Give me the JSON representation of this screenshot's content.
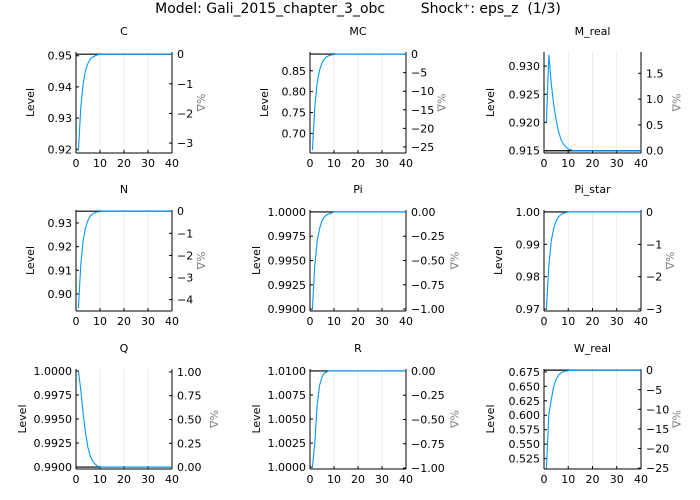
{
  "figure_title": "Model: Gali_2015_chapter_3_obc        Shock⁺: eps_z  (1/3)",
  "colors": {
    "line": "#009af9",
    "steady_state": "#000000",
    "grid": "#e6e6e6",
    "pct_label": "#808080"
  },
  "chart_data": [
    {
      "type": "line",
      "title": "C",
      "ylabel": "Level",
      "ylabel_right": "%Δ",
      "xlim": [
        0,
        40
      ],
      "xticks": [
        0,
        10,
        20,
        30,
        40
      ],
      "ylim": [
        0.9188,
        0.9512
      ],
      "yticks": [
        0.92,
        0.93,
        0.94,
        0.95
      ],
      "ytick_labels": [
        "0.92",
        "0.93",
        "0.94",
        "0.95"
      ],
      "steady_state": 0.9505,
      "right_ticks": [
        0,
        -1,
        -2,
        -3
      ],
      "right_tick_labels": [
        "0",
        "−1",
        "−2",
        "−3"
      ],
      "values": [
        0.9195,
        0.9335,
        0.9412,
        0.9454,
        0.9476,
        0.949,
        0.9496,
        0.95,
        0.9503,
        0.9504,
        0.9505,
        0.9505,
        0.9505,
        0.9505,
        0.9505,
        0.9505,
        0.9505,
        0.9505,
        0.9505,
        0.9505,
        0.9505,
        0.9505,
        0.9505,
        0.9505,
        0.9505,
        0.9505,
        0.9505,
        0.9505,
        0.9505,
        0.9505,
        0.9505,
        0.9505,
        0.9505,
        0.9505,
        0.9505,
        0.9505,
        0.9505,
        0.9505,
        0.9505,
        0.9505
      ]
    },
    {
      "type": "line",
      "title": "MC",
      "ylabel": "Level",
      "ylabel_right": "%Δ",
      "xlim": [
        0,
        40
      ],
      "xticks": [
        0,
        10,
        20,
        30,
        40
      ],
      "ylim": [
        0.653,
        0.895
      ],
      "yticks": [
        0.7,
        0.75,
        0.8,
        0.85
      ],
      "ytick_labels": [
        "0.70",
        "0.75",
        "0.80",
        "0.85"
      ],
      "steady_state": 0.89,
      "right_ticks": [
        0,
        -5,
        -10,
        -15,
        -20,
        -25
      ],
      "right_tick_labels": [
        "0",
        "−5",
        "−10",
        "−15",
        "−20",
        "−25"
      ],
      "values": [
        0.66,
        0.7635,
        0.821,
        0.852,
        0.869,
        0.8785,
        0.8836,
        0.8865,
        0.8882,
        0.8889,
        0.89,
        0.89,
        0.89,
        0.89,
        0.89,
        0.89,
        0.89,
        0.89,
        0.89,
        0.89,
        0.89,
        0.89,
        0.89,
        0.89,
        0.89,
        0.89,
        0.89,
        0.89,
        0.89,
        0.89,
        0.89,
        0.89,
        0.89,
        0.89,
        0.89,
        0.89,
        0.89,
        0.89,
        0.89,
        0.89
      ]
    },
    {
      "type": "line",
      "title": "M_real",
      "ylabel": "Level",
      "ylabel_right": "%Δ",
      "xlim": [
        0,
        40
      ],
      "xticks": [
        0,
        10,
        20,
        30,
        40
      ],
      "ylim": [
        0.9146,
        0.9325
      ],
      "yticks": [
        0.915,
        0.92,
        0.925,
        0.93
      ],
      "ytick_labels": [
        "0.915",
        "0.920",
        "0.925",
        "0.930"
      ],
      "steady_state": 0.915,
      "right_ticks": [
        0,
        0.5,
        1.0,
        1.5
      ],
      "right_tick_labels": [
        "0.0",
        "0.5",
        "1.0",
        "1.5"
      ],
      "values": [
        0.92,
        0.932,
        0.9269,
        0.9232,
        0.9204,
        0.9184,
        0.917,
        0.9162,
        0.9157,
        0.9153,
        0.9152,
        0.915,
        0.915,
        0.915,
        0.915,
        0.915,
        0.915,
        0.915,
        0.915,
        0.915,
        0.915,
        0.915,
        0.915,
        0.915,
        0.915,
        0.915,
        0.915,
        0.915,
        0.915,
        0.915,
        0.915,
        0.915,
        0.915,
        0.915,
        0.915,
        0.915,
        0.915,
        0.915,
        0.915,
        0.915
      ]
    },
    {
      "type": "line",
      "title": "N",
      "ylabel": "Level",
      "ylabel_right": "%Δ",
      "xlim": [
        0,
        40
      ],
      "xticks": [
        0,
        10,
        20,
        30,
        40
      ],
      "ylim": [
        0.8928,
        0.9355
      ],
      "yticks": [
        0.9,
        0.91,
        0.92,
        0.93
      ],
      "ytick_labels": [
        "0.90",
        "0.91",
        "0.92",
        "0.93"
      ],
      "steady_state": 0.935,
      "right_ticks": [
        0,
        -1,
        -2,
        -3,
        -4
      ],
      "right_tick_labels": [
        "0",
        "−1",
        "−2",
        "−3",
        "−4"
      ],
      "values": [
        0.894,
        0.9125,
        0.9227,
        0.9282,
        0.9312,
        0.933,
        0.9339,
        0.9344,
        0.9347,
        0.9348,
        0.935,
        0.935,
        0.935,
        0.935,
        0.935,
        0.935,
        0.935,
        0.935,
        0.935,
        0.935,
        0.935,
        0.935,
        0.935,
        0.935,
        0.935,
        0.935,
        0.935,
        0.935,
        0.935,
        0.935,
        0.935,
        0.935,
        0.935,
        0.935,
        0.935,
        0.935,
        0.935,
        0.935,
        0.935,
        0.935
      ]
    },
    {
      "type": "line",
      "title": "Pi",
      "ylabel": "Level",
      "ylabel_right": "%Δ",
      "xlim": [
        0,
        40
      ],
      "xticks": [
        0,
        10,
        20,
        30,
        40
      ],
      "ylim": [
        0.9898,
        1.0002
      ],
      "yticks": [
        0.99,
        0.9925,
        0.995,
        0.9975,
        1.0
      ],
      "ytick_labels": [
        "0.9900",
        "0.9925",
        "0.9950",
        "0.9975",
        "1.0000"
      ],
      "steady_state": 1.0,
      "right_ticks": [
        0,
        -0.25,
        -0.5,
        -0.75,
        -1.0
      ],
      "right_tick_labels": [
        "0.00",
        "−0.25",
        "−0.50",
        "−0.75",
        "−1.00"
      ],
      "values": [
        0.99,
        0.9945,
        0.997,
        0.9983,
        0.9991,
        0.9995,
        0.9997,
        0.9998,
        0.9999,
        1.0,
        1.0,
        1.0,
        1.0,
        1.0,
        1.0,
        1.0,
        1.0,
        1.0,
        1.0,
        1.0,
        1.0,
        1.0,
        1.0,
        1.0,
        1.0,
        1.0,
        1.0,
        1.0,
        1.0,
        1.0,
        1.0,
        1.0,
        1.0,
        1.0,
        1.0,
        1.0,
        1.0,
        1.0,
        1.0,
        1.0
      ]
    },
    {
      "type": "line",
      "title": "Pi_star",
      "ylabel": "Level",
      "ylabel_right": "%Δ",
      "xlim": [
        0,
        40
      ],
      "xticks": [
        0,
        10,
        20,
        30,
        40
      ],
      "ylim": [
        0.9694,
        1.0006
      ],
      "yticks": [
        0.97,
        0.98,
        0.99,
        1.0
      ],
      "ytick_labels": [
        "0.97",
        "0.98",
        "0.99",
        "1.00"
      ],
      "steady_state": 1.0,
      "right_ticks": [
        0,
        -1,
        -2,
        -3
      ],
      "right_tick_labels": [
        "0",
        "−1",
        "−2",
        "−3"
      ],
      "values": [
        0.97,
        0.9835,
        0.991,
        0.995,
        0.9972,
        0.9985,
        0.9992,
        0.9996,
        0.9998,
        1.0,
        1.0,
        1.0,
        1.0,
        1.0,
        1.0,
        1.0,
        1.0,
        1.0,
        1.0,
        1.0,
        1.0,
        1.0,
        1.0,
        1.0,
        1.0,
        1.0,
        1.0,
        1.0,
        1.0,
        1.0,
        1.0,
        1.0,
        1.0,
        1.0,
        1.0,
        1.0,
        1.0,
        1.0,
        1.0,
        1.0
      ]
    },
    {
      "type": "line",
      "title": "Q",
      "ylabel": "Level",
      "ylabel_right": "%Δ",
      "xlim": [
        0,
        40
      ],
      "xticks": [
        0,
        10,
        20,
        30,
        40
      ],
      "ylim": [
        0.9898,
        1.0002
      ],
      "yticks": [
        0.99,
        0.9925,
        0.995,
        0.9975,
        1.0
      ],
      "ytick_labels": [
        "0.9900",
        "0.9925",
        "0.9950",
        "0.9975",
        "1.0000"
      ],
      "steady_state": 0.99,
      "right_ticks": [
        0,
        0.25,
        0.5,
        0.75,
        1.0
      ],
      "right_tick_labels": [
        "0.00",
        "0.25",
        "0.50",
        "0.75",
        "1.00"
      ],
      "values": [
        1.0,
        0.998,
        0.9955,
        0.9935,
        0.992,
        0.9911,
        0.9906,
        0.9903,
        0.9901,
        0.99,
        0.99,
        0.99,
        0.99,
        0.99,
        0.99,
        0.99,
        0.99,
        0.99,
        0.99,
        0.99,
        0.99,
        0.99,
        0.99,
        0.99,
        0.99,
        0.99,
        0.99,
        0.99,
        0.99,
        0.99,
        0.99,
        0.99,
        0.99,
        0.99,
        0.99,
        0.99,
        0.99,
        0.99,
        0.99,
        0.99
      ]
    },
    {
      "type": "line",
      "title": "R",
      "ylabel": "Level",
      "ylabel_right": "%Δ",
      "xlim": [
        0,
        40
      ],
      "xticks": [
        0,
        10,
        20,
        30,
        40
      ],
      "ylim": [
        0.9998,
        1.0102
      ],
      "yticks": [
        1.0,
        1.0025,
        1.005,
        1.0075,
        1.01
      ],
      "ytick_labels": [
        "1.0000",
        "1.0025",
        "1.0050",
        "1.0075",
        "1.0100"
      ],
      "steady_state": 1.01,
      "right_ticks": [
        0,
        -0.25,
        -0.5,
        -0.75,
        -1.0
      ],
      "right_tick_labels": [
        "0.00",
        "−0.25",
        "−0.50",
        "−0.75",
        "−1.00"
      ],
      "values": [
        1.0,
        1.0025,
        1.0065,
        1.0085,
        1.0094,
        1.0098,
        1.0099,
        1.01,
        1.01,
        1.01,
        1.01,
        1.01,
        1.01,
        1.01,
        1.01,
        1.01,
        1.01,
        1.01,
        1.01,
        1.01,
        1.01,
        1.01,
        1.01,
        1.01,
        1.01,
        1.01,
        1.01,
        1.01,
        1.01,
        1.01,
        1.01,
        1.01,
        1.01,
        1.01,
        1.01,
        1.01,
        1.01,
        1.01,
        1.01,
        1.01
      ]
    },
    {
      "type": "line",
      "title": "W_real",
      "ylabel": "Level",
      "ylabel_right": "%Δ",
      "xlim": [
        0,
        40
      ],
      "xticks": [
        0,
        10,
        20,
        30,
        40
      ],
      "ylim": [
        0.507,
        0.68
      ],
      "yticks": [
        0.525,
        0.55,
        0.575,
        0.6,
        0.625,
        0.65,
        0.675
      ],
      "ytick_labels": [
        "0.525",
        "0.550",
        "0.575",
        "0.600",
        "0.625",
        "0.650",
        "0.675"
      ],
      "steady_state": 0.678,
      "right_ticks": [
        0,
        -5,
        -10,
        -15,
        -20,
        -25
      ],
      "right_tick_labels": [
        "0",
        "−5",
        "−10",
        "−15",
        "−20",
        "−25"
      ],
      "values": [
        0.508,
        0.6015,
        0.627,
        0.6498,
        0.6624,
        0.6695,
        0.6732,
        0.6755,
        0.6766,
        0.6772,
        0.678,
        0.678,
        0.678,
        0.678,
        0.678,
        0.678,
        0.678,
        0.678,
        0.678,
        0.678,
        0.678,
        0.678,
        0.678,
        0.678,
        0.678,
        0.678,
        0.678,
        0.678,
        0.678,
        0.678,
        0.678,
        0.678,
        0.678,
        0.678,
        0.678,
        0.678,
        0.678,
        0.678,
        0.678,
        0.678
      ]
    }
  ]
}
